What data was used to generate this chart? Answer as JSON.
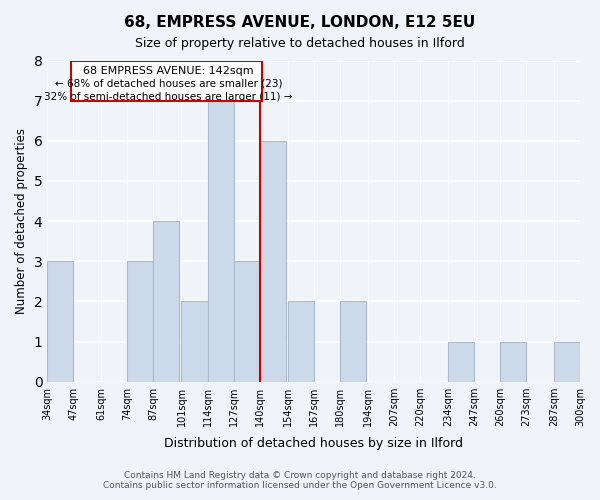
{
  "title": "68, EMPRESS AVENUE, LONDON, E12 5EU",
  "subtitle": "Size of property relative to detached houses in Ilford",
  "xlabel": "Distribution of detached houses by size in Ilford",
  "ylabel": "Number of detached properties",
  "bar_color": "#ccd9e8",
  "bar_edge_color": "#aabbcc",
  "bins": [
    34,
    47,
    61,
    74,
    87,
    101,
    114,
    127,
    140,
    154,
    167,
    180,
    194,
    207,
    220,
    234,
    247,
    260,
    273,
    287,
    300
  ],
  "bin_labels": [
    "34sqm",
    "47sqm",
    "61sqm",
    "74sqm",
    "87sqm",
    "101sqm",
    "114sqm",
    "127sqm",
    "140sqm",
    "154sqm",
    "167sqm",
    "180sqm",
    "194sqm",
    "207sqm",
    "220sqm",
    "234sqm",
    "247sqm",
    "260sqm",
    "273sqm",
    "287sqm",
    "300sqm"
  ],
  "counts": [
    3,
    0,
    0,
    3,
    4,
    2,
    7,
    3,
    6,
    2,
    0,
    2,
    0,
    0,
    0,
    1,
    0,
    1,
    0,
    1
  ],
  "property_size": 142,
  "property_label": "68 EMPRESS AVENUE: 142sqm",
  "annotation_line1": "← 68% of detached houses are smaller (23)",
  "annotation_line2": "32% of semi-detached houses are larger (11) →",
  "vline_x": 140,
  "vline_color": "#cc0000",
  "box_color": "#cc0000",
  "ylim": [
    0,
    8
  ],
  "yticks": [
    0,
    1,
    2,
    3,
    4,
    5,
    6,
    7,
    8
  ],
  "footer_line1": "Contains HM Land Registry data © Crown copyright and database right 2024.",
  "footer_line2": "Contains public sector information licensed under the Open Government Licence v3.0.",
  "background_color": "#f0f4f8"
}
